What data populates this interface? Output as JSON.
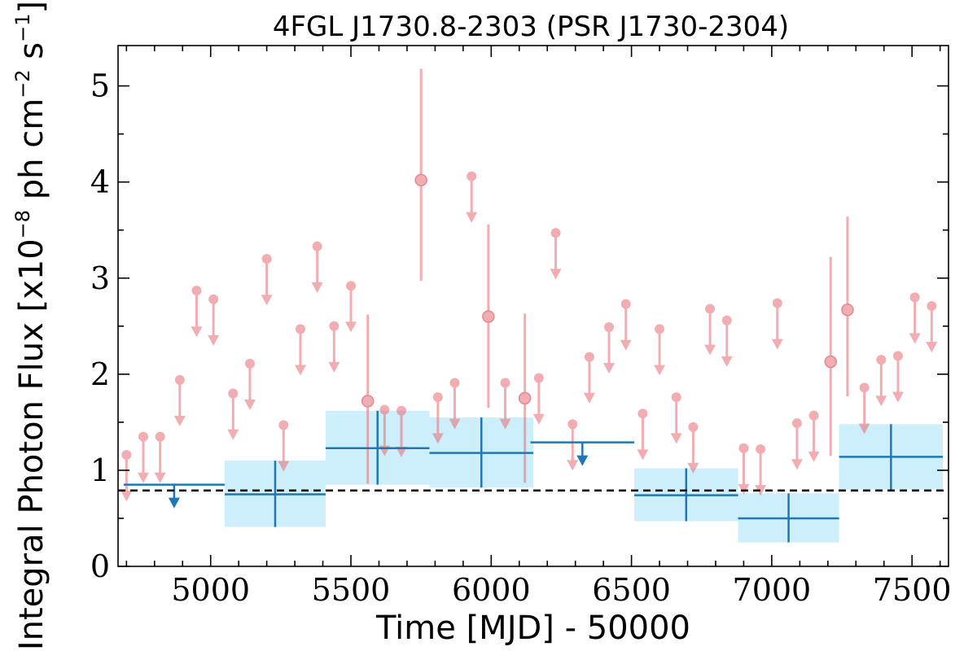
{
  "chart_data": {
    "type": "scatter",
    "title": "4FGL J1730.8-2303 (PSR J1730-2304)",
    "xlabel": "Time [MJD] - 50000",
    "ylabel": "Integral Photon Flux [x10",
    "ylabel_exp1": "−8",
    "ylabel_mid": " ph cm",
    "ylabel_exp2": "−2",
    "ylabel_s": " s",
    "ylabel_exp3": "−1",
    "ylabel_end": "]",
    "xlim": [
      4670,
      7630
    ],
    "ylim": [
      0,
      5.42
    ],
    "xticks": [
      5000,
      5500,
      6000,
      6500,
      7000,
      7500
    ],
    "xtick_labels": [
      "5000",
      "5500",
      "6000",
      "6500",
      "7000",
      "7500"
    ],
    "yticks": [
      0,
      1,
      2,
      3,
      4,
      5
    ],
    "ytick_labels": [
      "0",
      "1",
      "2",
      "3",
      "4",
      "5"
    ],
    "reference_level": 0.79,
    "colors": {
      "short_bins": "#e8777e",
      "long_bins": "#1f77b4",
      "long_bin_band": "#cdeefb",
      "reference": "#000000"
    },
    "series": [
      {
        "kind": "upper_limits",
        "points": [
          {
            "x": 4700,
            "y": 1.16
          },
          {
            "x": 4760,
            "y": 1.35
          },
          {
            "x": 4820,
            "y": 1.35
          },
          {
            "x": 4890,
            "y": 1.94
          },
          {
            "x": 4950,
            "y": 2.87
          },
          {
            "x": 5010,
            "y": 2.78
          },
          {
            "x": 5080,
            "y": 1.8
          },
          {
            "x": 5140,
            "y": 2.11
          },
          {
            "x": 5200,
            "y": 3.2
          },
          {
            "x": 5260,
            "y": 1.47
          },
          {
            "x": 5320,
            "y": 2.47
          },
          {
            "x": 5380,
            "y": 3.33
          },
          {
            "x": 5440,
            "y": 2.5
          },
          {
            "x": 5500,
            "y": 2.92
          },
          {
            "x": 5620,
            "y": 1.63
          },
          {
            "x": 5680,
            "y": 1.62
          },
          {
            "x": 5810,
            "y": 1.76
          },
          {
            "x": 5870,
            "y": 1.91
          },
          {
            "x": 5930,
            "y": 4.06
          },
          {
            "x": 6050,
            "y": 1.91
          },
          {
            "x": 6170,
            "y": 1.96
          },
          {
            "x": 6230,
            "y": 3.47
          },
          {
            "x": 6290,
            "y": 1.48
          },
          {
            "x": 6350,
            "y": 2.18
          },
          {
            "x": 6420,
            "y": 2.49
          },
          {
            "x": 6480,
            "y": 2.73
          },
          {
            "x": 6540,
            "y": 1.59
          },
          {
            "x": 6600,
            "y": 2.47
          },
          {
            "x": 6660,
            "y": 1.76
          },
          {
            "x": 6720,
            "y": 1.45
          },
          {
            "x": 6780,
            "y": 2.68
          },
          {
            "x": 6840,
            "y": 2.56
          },
          {
            "x": 6900,
            "y": 1.23
          },
          {
            "x": 6960,
            "y": 1.22
          },
          {
            "x": 7020,
            "y": 2.74
          },
          {
            "x": 7090,
            "y": 1.49
          },
          {
            "x": 7150,
            "y": 1.57
          },
          {
            "x": 7330,
            "y": 1.86
          },
          {
            "x": 7390,
            "y": 2.15
          },
          {
            "x": 7450,
            "y": 2.19
          },
          {
            "x": 7510,
            "y": 2.8
          },
          {
            "x": 7570,
            "y": 2.71
          }
        ]
      },
      {
        "kind": "detections",
        "points": [
          {
            "x": 5560,
            "y": 1.72,
            "err_low": 0.86,
            "err_high": 2.62
          },
          {
            "x": 5750,
            "y": 4.02,
            "err_low": 2.97,
            "err_high": 5.18
          },
          {
            "x": 5990,
            "y": 2.6,
            "err_low": 1.65,
            "err_high": 3.56
          },
          {
            "x": 6120,
            "y": 1.75,
            "err_low": 0.87,
            "err_high": 2.63
          },
          {
            "x": 7210,
            "y": 2.13,
            "err_low": 1.15,
            "err_high": 3.22
          },
          {
            "x": 7270,
            "y": 2.67,
            "err_low": 1.77,
            "err_high": 3.64
          }
        ]
      },
      {
        "kind": "long_bins",
        "points": [
          {
            "x0": 4690,
            "x1": 5050,
            "y": 0.85,
            "upper_limit": true,
            "arrow_x": 4870
          },
          {
            "x0": 5050,
            "x1": 5410,
            "y": 0.75,
            "err_low": 0.41,
            "err_high": 1.1,
            "center": 5230
          },
          {
            "x0": 5410,
            "x1": 5780,
            "y": 1.23,
            "err_low": 0.85,
            "err_high": 1.62,
            "center": 5595
          },
          {
            "x0": 5780,
            "x1": 6150,
            "y": 1.18,
            "err_low": 0.82,
            "err_high": 1.55,
            "center": 5965
          },
          {
            "x0": 6140,
            "x1": 6510,
            "y": 1.29,
            "upper_limit": true,
            "arrow_x": 6325
          },
          {
            "x0": 6510,
            "x1": 6880,
            "y": 0.74,
            "err_low": 0.47,
            "err_high": 1.02,
            "center": 6695
          },
          {
            "x0": 6880,
            "x1": 7240,
            "y": 0.5,
            "err_low": 0.25,
            "err_high": 0.76,
            "center": 7060
          },
          {
            "x0": 7240,
            "x1": 7610,
            "y": 1.14,
            "err_low": 0.8,
            "err_high": 1.48,
            "center": 7425
          }
        ]
      }
    ]
  }
}
